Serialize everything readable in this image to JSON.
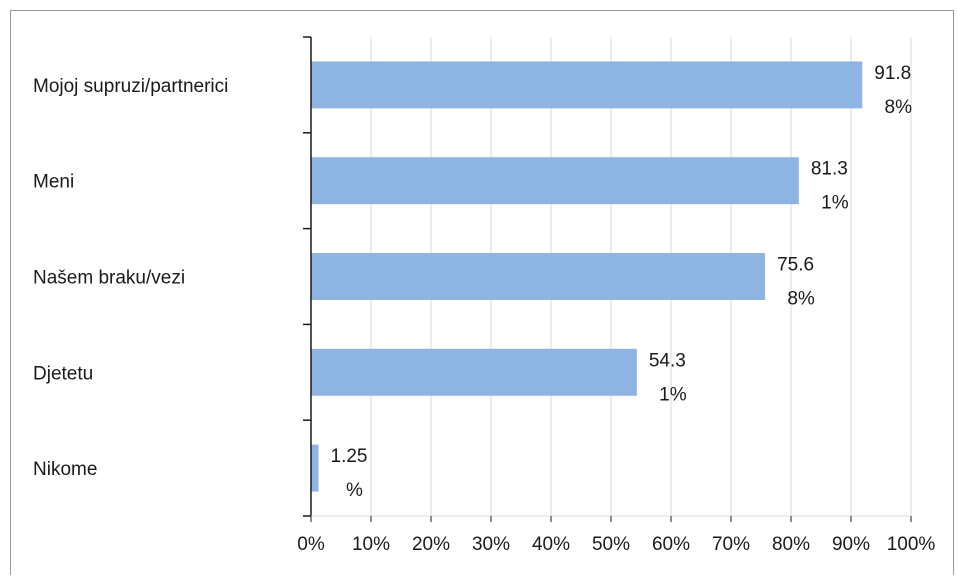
{
  "chart_data": {
    "type": "bar",
    "orientation": "horizontal",
    "categories": [
      "Mojoj supruzi/partnerici",
      "Meni",
      "Našem braku/vezi",
      "Djetetu",
      "Nikome"
    ],
    "values": [
      91.88,
      81.31,
      75.68,
      54.31,
      1.25
    ],
    "data_labels": [
      [
        "91.8",
        "8%"
      ],
      [
        "81.3",
        "1%"
      ],
      [
        "75.6",
        "8%"
      ],
      [
        "54.3",
        "1%"
      ],
      [
        "1.25",
        "%"
      ]
    ],
    "xlim": [
      0,
      100
    ],
    "x_ticks": [
      "0%",
      "10%",
      "20%",
      "30%",
      "40%",
      "50%",
      "60%",
      "70%",
      "80%",
      "90%",
      "100%"
    ],
    "grid": true,
    "bar_color": "#8eb4e3",
    "grid_color": "#d9d9d9",
    "axis_color": "#1a1a1a",
    "legend": "none"
  }
}
